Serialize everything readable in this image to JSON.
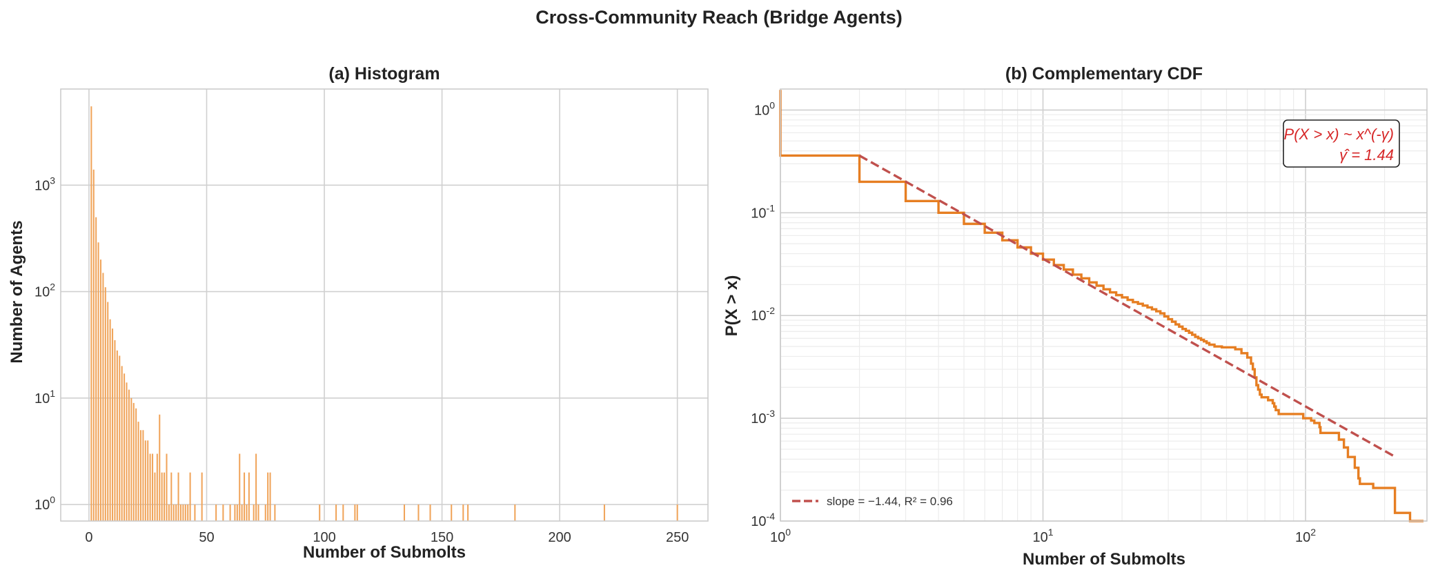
{
  "figure": {
    "suptitle": "Cross-Community Reach (Bridge Agents)"
  },
  "chart_data": [
    {
      "type": "bar",
      "title": "(a) Histogram",
      "xlabel": "Number of Submolts",
      "ylabel": "Number of Agents",
      "yscale": "log",
      "xlim": [
        -12,
        263
      ],
      "ylim": [
        0.7,
        8000
      ],
      "xticks": [
        0,
        50,
        100,
        150,
        200,
        250
      ],
      "yticks": [
        1,
        10,
        100,
        1000
      ],
      "ytick_labels": [
        "10^0",
        "10^1",
        "10^2",
        "10^3"
      ],
      "grid": true,
      "color": "#f0a45a",
      "x": [
        1,
        2,
        3,
        4,
        5,
        6,
        7,
        8,
        9,
        10,
        11,
        12,
        13,
        14,
        15,
        16,
        17,
        18,
        19,
        20,
        21,
        22,
        23,
        24,
        25,
        26,
        27,
        28,
        29,
        30,
        31,
        32,
        33,
        34,
        35,
        36,
        37,
        38,
        39,
        40,
        41,
        42,
        43,
        45,
        48,
        54,
        57,
        60,
        62,
        63,
        64,
        65,
        66,
        67,
        68,
        70,
        71,
        72,
        75,
        76,
        77,
        79,
        98,
        105,
        108,
        113,
        114,
        134,
        140,
        145,
        154,
        159,
        161,
        181,
        219,
        250
      ],
      "values": [
        5500,
        1400,
        500,
        290,
        200,
        150,
        110,
        80,
        55,
        45,
        35,
        28,
        25,
        20,
        17,
        14,
        12,
        10,
        9,
        8,
        6,
        5,
        5,
        4,
        4,
        3,
        3,
        2,
        3,
        7,
        2,
        2,
        3,
        1,
        2,
        1,
        1,
        2,
        1,
        1,
        1,
        1,
        2,
        1,
        2,
        1,
        1,
        1,
        1,
        1,
        3,
        1,
        2,
        1,
        2,
        1,
        3,
        1,
        1,
        2,
        2,
        1,
        1,
        1,
        1,
        1,
        1,
        1,
        1,
        1,
        1,
        1,
        1,
        1,
        1,
        1
      ]
    },
    {
      "type": "line",
      "title": "(b) Complementary CDF",
      "xlabel": "Number of Submolts",
      "ylabel": "P(X > x)",
      "xscale": "log",
      "yscale": "log",
      "xlim": [
        1,
        290
      ],
      "ylim": [
        0.0001,
        1.6
      ],
      "xticks": [
        1,
        10,
        100
      ],
      "xtick_labels": [
        "10^0",
        "10^1",
        "10^2"
      ],
      "yticks": [
        0.0001,
        0.001,
        0.01,
        0.1,
        1
      ],
      "ytick_labels": [
        "10^-4",
        "10^-3",
        "10^-2",
        "10^-1",
        "10^0"
      ],
      "grid": true,
      "legend_position": "lower-left",
      "series": [
        {
          "kind": "step",
          "color": "#e67e22",
          "x": [
            1,
            2,
            3,
            4,
            5,
            6,
            7,
            8,
            9,
            10,
            11,
            12,
            13,
            14,
            15,
            16,
            17,
            18,
            19,
            20,
            21,
            22,
            23,
            24,
            25,
            26,
            27,
            28,
            29,
            30,
            31,
            32,
            33,
            34,
            35,
            36,
            37,
            38,
            39,
            40,
            41,
            42,
            43,
            45,
            48,
            54,
            57,
            60,
            62,
            63,
            64,
            65,
            66,
            67,
            68,
            70,
            71,
            72,
            75,
            76,
            77,
            79,
            98,
            105,
            108,
            113,
            114,
            134,
            140,
            145,
            154,
            159,
            161,
            181,
            219,
            250
          ],
          "y": [
            0.36,
            0.2,
            0.13,
            0.1,
            0.078,
            0.064,
            0.054,
            0.046,
            0.04,
            0.035,
            0.031,
            0.028,
            0.025,
            0.023,
            0.021,
            0.0195,
            0.018,
            0.0168,
            0.0158,
            0.015,
            0.0142,
            0.0135,
            0.013,
            0.0125,
            0.012,
            0.0115,
            0.011,
            0.0105,
            0.0098,
            0.0092,
            0.0087,
            0.0082,
            0.0078,
            0.0074,
            0.0071,
            0.0068,
            0.0065,
            0.0062,
            0.006,
            0.0058,
            0.0056,
            0.0054,
            0.0052,
            0.005,
            0.0049,
            0.0047,
            0.0043,
            0.0039,
            0.0034,
            0.003,
            0.0025,
            0.0021,
            0.0019,
            0.0017,
            0.0016,
            0.0016,
            0.0016,
            0.0015,
            0.0014,
            0.0013,
            0.0012,
            0.0011,
            0.001,
            0.00095,
            0.0009,
            0.00082,
            0.00072,
            0.00062,
            0.00052,
            0.00042,
            0.00033,
            0.00026,
            0.00023,
            0.00021,
            0.00012,
            0.0001
          ]
        },
        {
          "kind": "fit",
          "name": "slope $=-1.44$, $R^2=0.96$",
          "color": "#c0504d",
          "dash": true,
          "x": [
            2,
            220
          ],
          "y": [
            0.36,
            0.00042
          ]
        }
      ],
      "annotation": {
        "line1": "P(X > x) ~ x^(-γ)",
        "line2": "γ̂ = 1.44",
        "color": "#d62728"
      },
      "legend_text": "slope = −1.44, R² = 0.96"
    }
  ]
}
